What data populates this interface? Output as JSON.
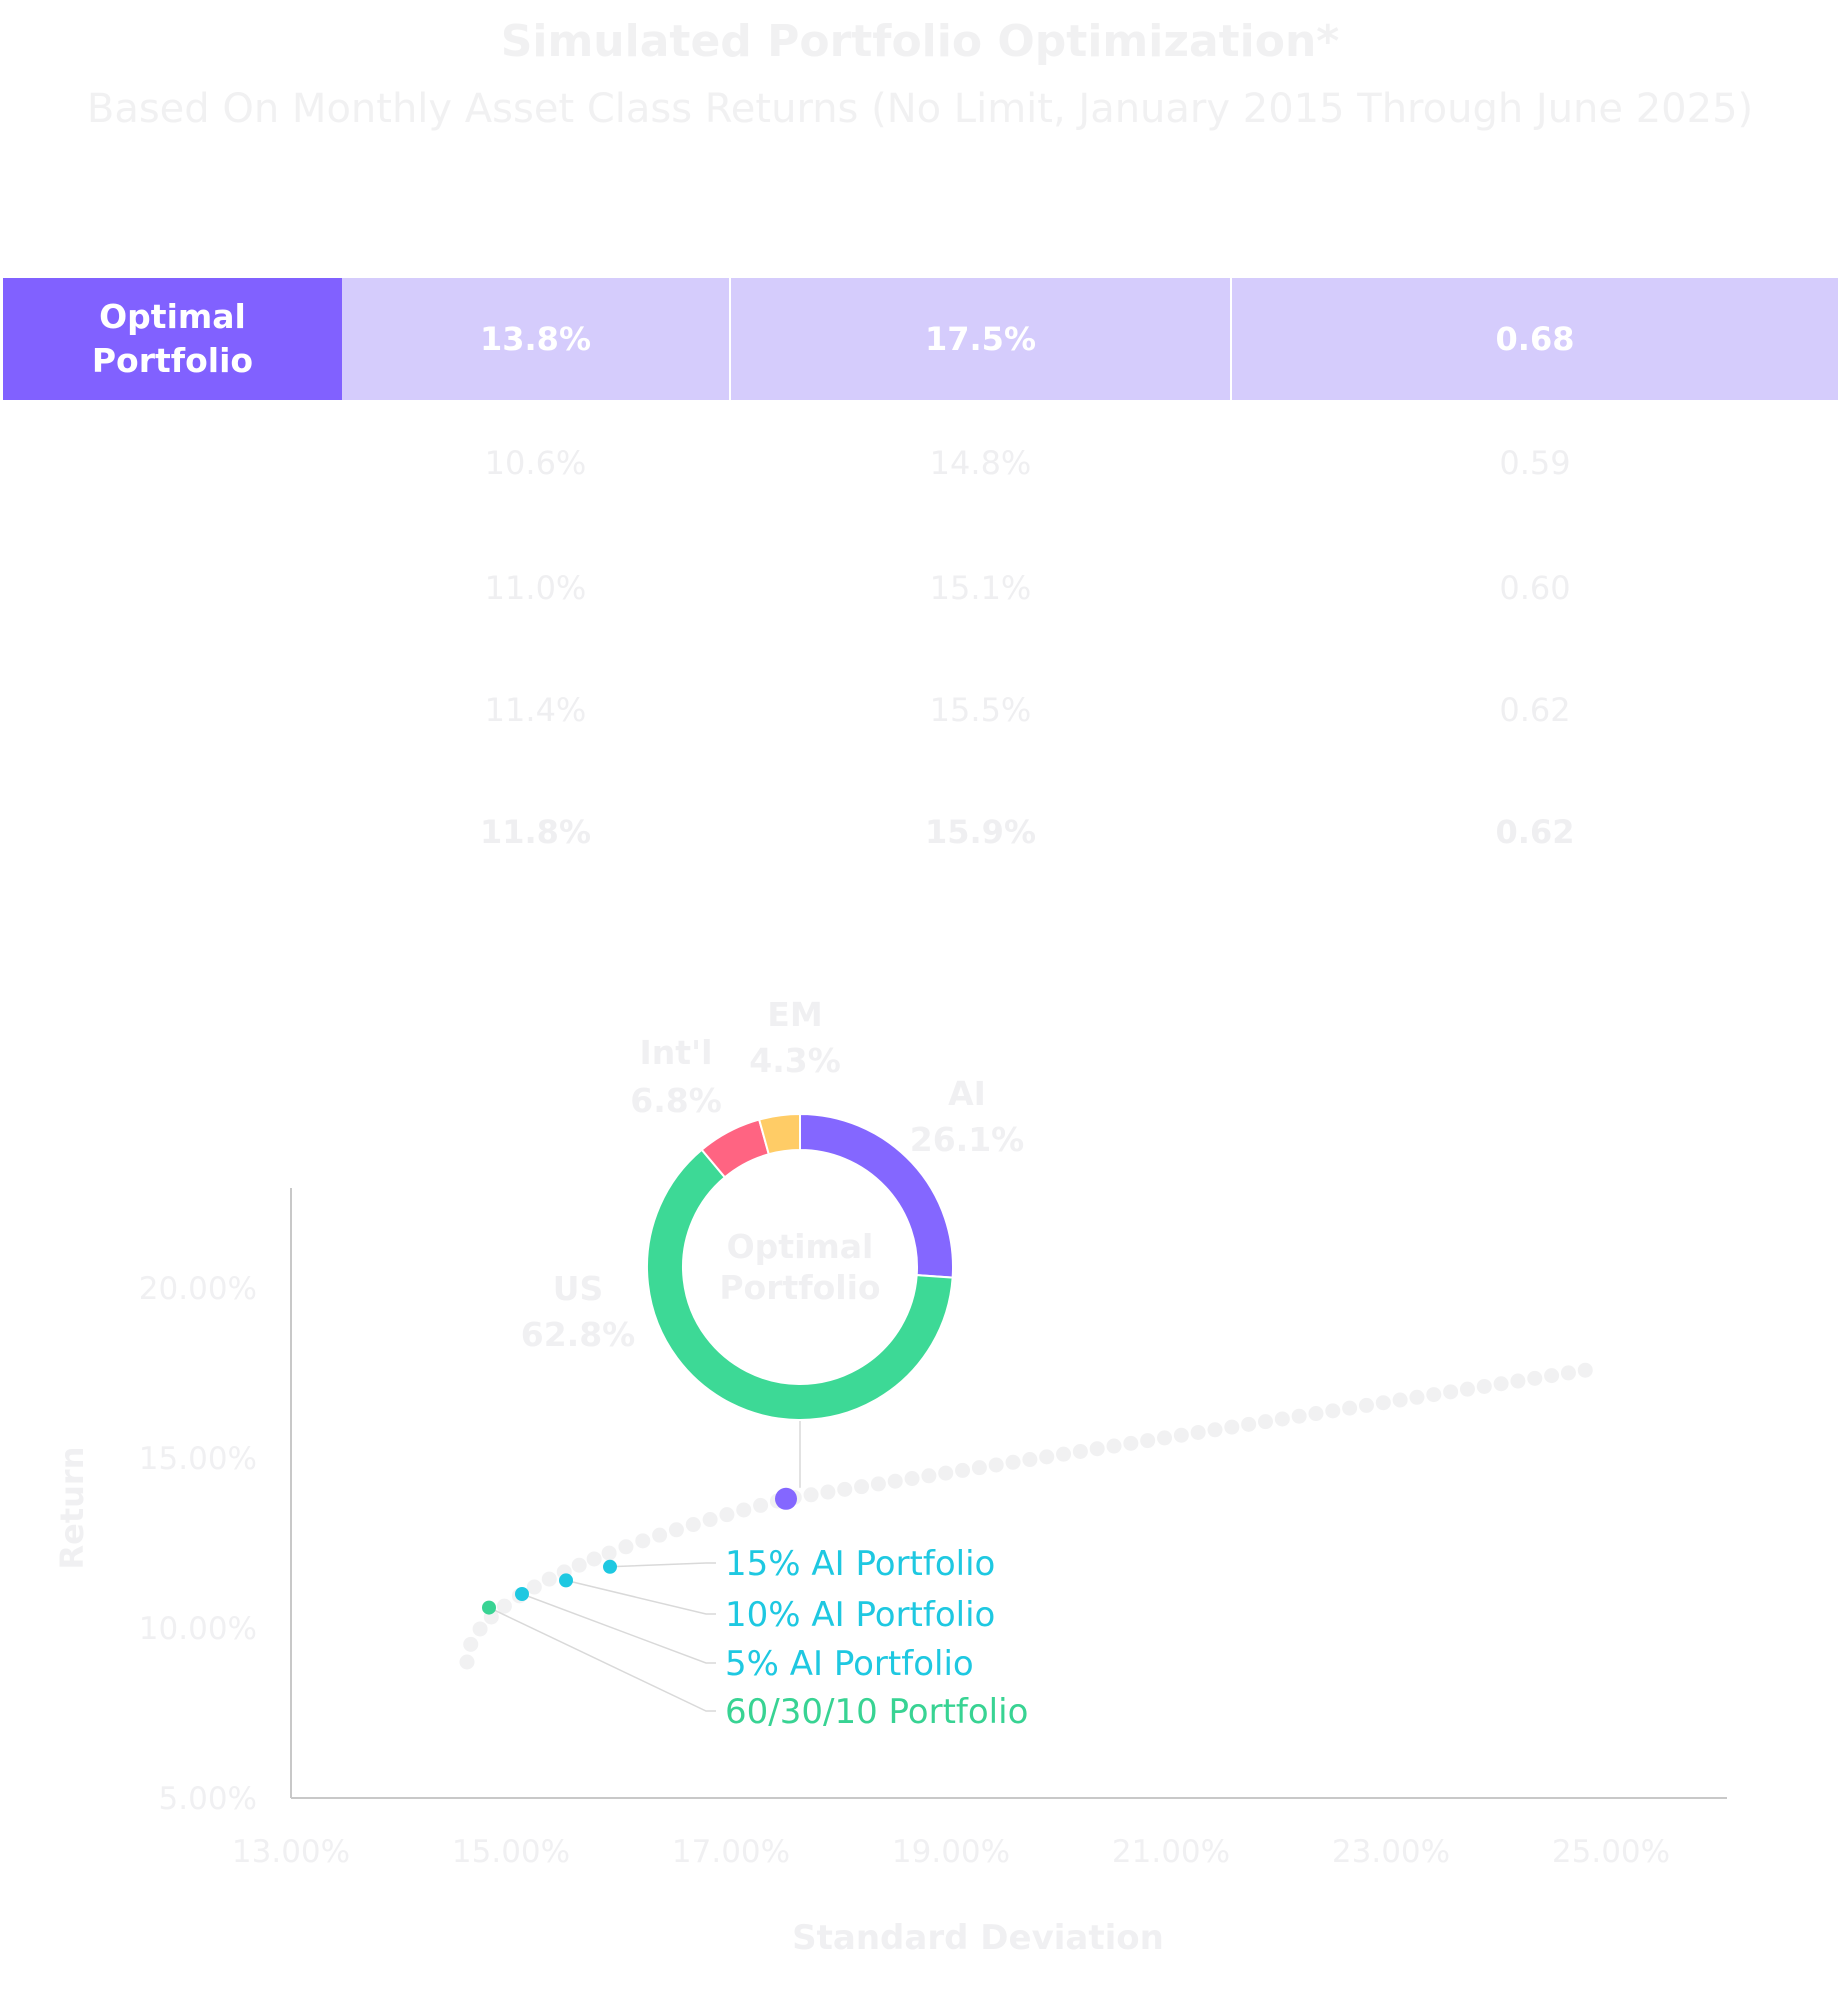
{
  "title": "Simulated Portfolio Optimization*",
  "subtitle": "Based On Monthly Asset Class Returns (No Limit, January 2015 Through June 2025)",
  "colors": {
    "optimal_label_bg": "#8161ff",
    "optimal_row_bg": "#d5ccfc",
    "faint_text": "#f0f0f2",
    "frontier_dot": "#f1f1f2",
    "ai": "#8467ff",
    "us": "#3dd996",
    "intl": "#ff6482",
    "em": "#ffcc66",
    "cyan": "#1ec8e1",
    "green_label": "#38d393",
    "leader": "#d9d9d9",
    "axis": "#c8c8c8"
  },
  "table": {
    "optimal": {
      "label_line1": "Optimal",
      "label_line2": "Portfolio",
      "values": [
        "13.8%",
        "17.5%",
        "0.68"
      ]
    },
    "rows": [
      {
        "values": [
          "10.6%",
          "14.8%",
          "0.59"
        ],
        "bold": false
      },
      {
        "values": [
          "11.0%",
          "15.1%",
          "0.60"
        ],
        "bold": false
      },
      {
        "values": [
          "11.4%",
          "15.5%",
          "0.62"
        ],
        "bold": false
      },
      {
        "values": [
          "11.8%",
          "15.9%",
          "0.62"
        ],
        "bold": true
      }
    ]
  },
  "chart_data": {
    "type": "scatter",
    "xlabel": "Standard Deviation",
    "ylabel": "Return",
    "xlim": [
      13,
      26
    ],
    "ylim": [
      5,
      22
    ],
    "x_ticks": [
      {
        "value": 13,
        "label": "13.00%"
      },
      {
        "value": 15,
        "label": "15.00%"
      },
      {
        "value": 17,
        "label": "17.00%"
      },
      {
        "value": 19,
        "label": "19.00%"
      },
      {
        "value": 21,
        "label": "21.00%"
      },
      {
        "value": 23,
        "label": "23.00%"
      },
      {
        "value": 25,
        "label": "25.00%"
      }
    ],
    "y_ticks": [
      {
        "value": 5,
        "label": "5.00%"
      },
      {
        "value": 10,
        "label": "10.00%"
      },
      {
        "value": 15,
        "label": "15.00%"
      },
      {
        "value": 20,
        "label": "20.00%"
      }
    ],
    "frontier": {
      "x_start": 14.6,
      "x_end": 24.8,
      "y_min": 9.0,
      "y_max": 17.6,
      "y_min_sd": 14.6,
      "y_at_optimal": 13.8,
      "optimal_sd": 17.5
    },
    "highlighted": [
      {
        "name": "Optimal Portfolio",
        "x": 17.5,
        "y": 13.8,
        "color": "#8467ff"
      },
      {
        "name": "15% AI Portfolio",
        "x": 15.9,
        "y": 11.8,
        "label": "15% AI Portfolio",
        "color": "#1ec8e1"
      },
      {
        "name": "10% AI Portfolio",
        "x": 15.5,
        "y": 11.4,
        "label": "10% AI Portfolio",
        "color": "#1ec8e1"
      },
      {
        "name": "5% AI Portfolio",
        "x": 15.1,
        "y": 11.0,
        "label": "5% AI Portfolio",
        "color": "#1ec8e1"
      },
      {
        "name": "60/30/10 Portfolio",
        "x": 14.8,
        "y": 10.6,
        "label": "60/30/10 Portfolio",
        "color": "#38d393"
      }
    ],
    "donut": {
      "center_label_line1": "Optimal",
      "center_label_line2": "Portfolio",
      "slices": [
        {
          "name": "AI",
          "value": 26.1,
          "label": "26.1%",
          "color": "#8467ff"
        },
        {
          "name": "US",
          "value": 62.8,
          "label": "62.8%",
          "color": "#3dd996"
        },
        {
          "name": "Int'l",
          "value": 6.8,
          "label": "6.8%",
          "color": "#ff6482"
        },
        {
          "name": "EM",
          "value": 4.3,
          "label": "4.3%",
          "color": "#ffcc66"
        }
      ]
    }
  }
}
